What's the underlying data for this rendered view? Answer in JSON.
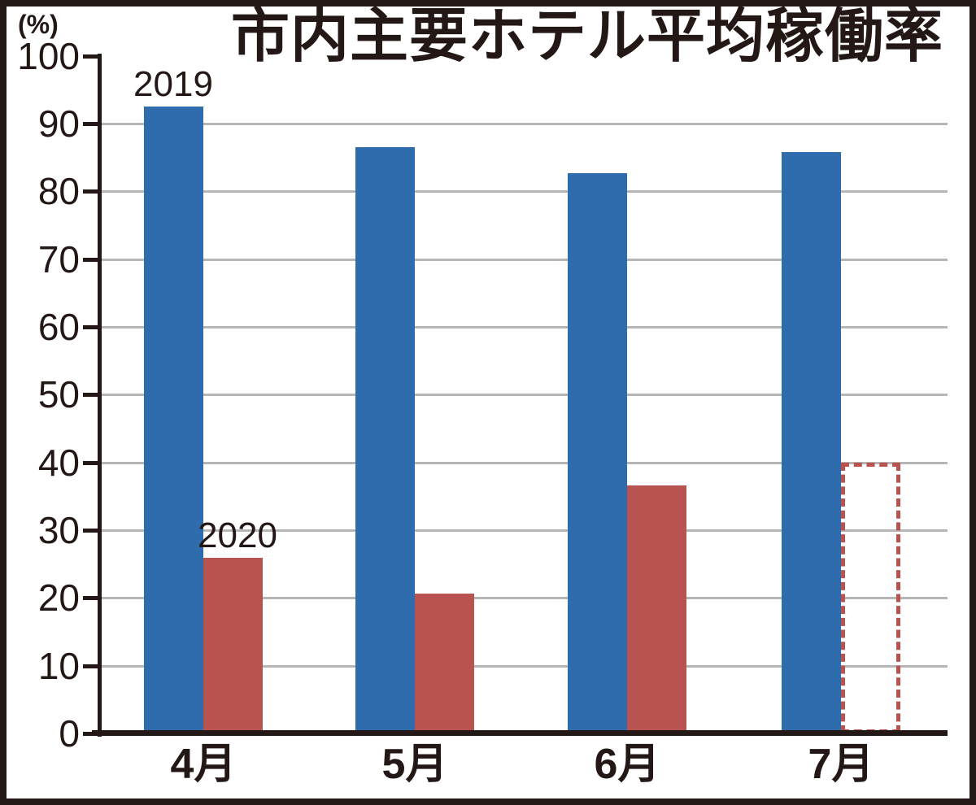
{
  "title": "市内主要ホテル平均稼働率",
  "y_axis": {
    "unit": "(%)"
  },
  "colors": {
    "bar_2019": "#2f6cae",
    "bar_2020": "#b9534f",
    "grid": "#b6b6b6",
    "ink": "#231815"
  },
  "chart_data": {
    "type": "bar",
    "title": "市内主要ホテル平均稼働率",
    "ylabel": "(%)",
    "categories": [
      "4月",
      "5月",
      "6月",
      "7月"
    ],
    "series": [
      {
        "name": "2019",
        "color": "#2f6cae",
        "values": [
          92.5,
          86.5,
          82.7,
          85.8
        ],
        "bar_styles": [
          "solid",
          "solid",
          "solid",
          "solid"
        ]
      },
      {
        "name": "2020",
        "color": "#b9534f",
        "values": [
          25.9,
          20.7,
          36.6,
          40.0
        ],
        "bar_styles": [
          "solid",
          "solid",
          "solid",
          "dashed-outline"
        ]
      }
    ],
    "ylim": [
      0,
      100
    ],
    "ytick_step": 10,
    "yticks": [
      "0",
      "10",
      "20",
      "30",
      "40",
      "50",
      "60",
      "70",
      "80",
      "90",
      "100"
    ],
    "grid": true,
    "legend_style": "inline-annotations",
    "annotations": [
      {
        "text": "2019",
        "anchor": "above-2019-bar-of-4月"
      },
      {
        "text": "2020",
        "anchor": "above-2020-bar-of-4月"
      }
    ]
  }
}
